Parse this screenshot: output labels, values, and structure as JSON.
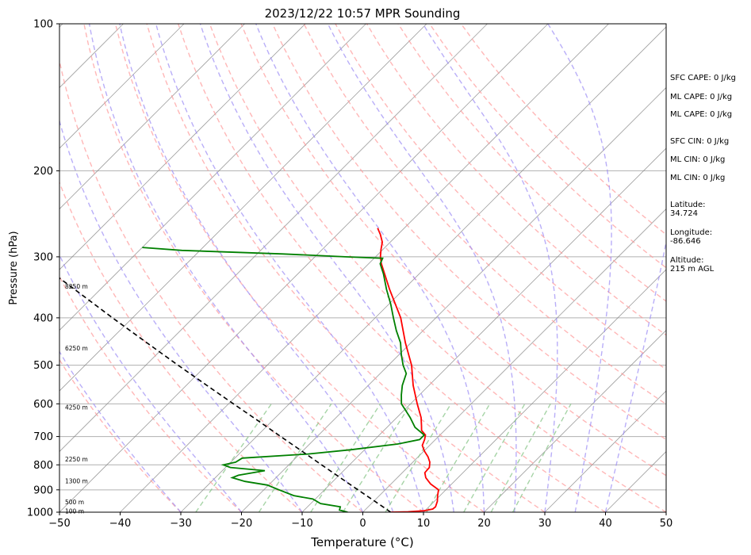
{
  "chart_data": {
    "type": "line",
    "title": "2023/12/22 10:57 MPR Sounding",
    "xlabel": "Temperature (°C)",
    "ylabel": "Pressure (hPa)",
    "xlim": [
      -50,
      50
    ],
    "ylim": [
      1000,
      100
    ],
    "yscale": "log",
    "skew": "skew-T log-P",
    "grid": true,
    "x_ticks": [
      "−50",
      "−40",
      "−30",
      "−20",
      "−10",
      "0",
      "10",
      "20",
      "30",
      "40",
      "50"
    ],
    "y_ticks": [
      {
        "p": 100,
        "label": "100"
      },
      {
        "p": 200,
        "label": "200"
      },
      {
        "p": 300,
        "label": "300"
      },
      {
        "p": 400,
        "label": "400"
      },
      {
        "p": 500,
        "label": "500"
      },
      {
        "p": 600,
        "label": "600"
      },
      {
        "p": 700,
        "label": "700"
      },
      {
        "p": 800,
        "label": "800"
      },
      {
        "p": 900,
        "label": "900"
      },
      {
        "p": 1000,
        "label": "1000"
      }
    ],
    "height_labels": [
      {
        "p": 997,
        "label": "100 m"
      },
      {
        "p": 955,
        "label": "500 m"
      },
      {
        "p": 865,
        "label": "1300 m"
      },
      {
        "p": 780,
        "label": "2250 m"
      },
      {
        "p": 610,
        "label": "4250 m"
      },
      {
        "p": 462,
        "label": "6250 m"
      },
      {
        "p": 345,
        "label": "8250 m"
      }
    ],
    "series": [
      {
        "role": "temperature",
        "color": "#ff0000",
        "points": [
          {
            "p": 1000,
            "t": 4.6
          },
          {
            "p": 998,
            "t": 7.4
          },
          {
            "p": 993,
            "t": 9.9
          },
          {
            "p": 985,
            "t": 11.0
          },
          {
            "p": 975,
            "t": 11.1
          },
          {
            "p": 950,
            "t": 10.5
          },
          {
            "p": 925,
            "t": 9.6
          },
          {
            "p": 900,
            "t": 8.8
          },
          {
            "p": 875,
            "t": 6.5
          },
          {
            "p": 850,
            "t": 4.7
          },
          {
            "p": 830,
            "t": 3.7
          },
          {
            "p": 810,
            "t": 3.6
          },
          {
            "p": 790,
            "t": 2.8
          },
          {
            "p": 770,
            "t": 1.6
          },
          {
            "p": 750,
            "t": 0.1
          },
          {
            "p": 730,
            "t": -1.2
          },
          {
            "p": 710,
            "t": -1.8
          },
          {
            "p": 695,
            "t": -2.4
          },
          {
            "p": 680,
            "t": -3.8
          },
          {
            "p": 665,
            "t": -4.6
          },
          {
            "p": 640,
            "t": -6.0
          },
          {
            "p": 600,
            "t": -8.9
          },
          {
            "p": 550,
            "t": -12.6
          },
          {
            "p": 500,
            "t": -16.2
          },
          {
            "p": 450,
            "t": -20.9
          },
          {
            "p": 400,
            "t": -25.8
          },
          {
            "p": 350,
            "t": -32.3
          },
          {
            "p": 310,
            "t": -37.9
          },
          {
            "p": 300,
            "t": -39.2
          },
          {
            "p": 290,
            "t": -40.3
          },
          {
            "p": 280,
            "t": -41.3
          },
          {
            "p": 270,
            "t": -42.9
          },
          {
            "p": 262,
            "t": -44.4
          }
        ]
      },
      {
        "role": "dewpoint",
        "color": "#008000",
        "points": [
          {
            "p": 1000,
            "t": -2.5
          },
          {
            "p": 990,
            "t": -4.2
          },
          {
            "p": 975,
            "t": -4.6
          },
          {
            "p": 960,
            "t": -8.4
          },
          {
            "p": 940,
            "t": -10.4
          },
          {
            "p": 925,
            "t": -14.1
          },
          {
            "p": 900,
            "t": -17.5
          },
          {
            "p": 880,
            "t": -20.2
          },
          {
            "p": 865,
            "t": -24.5
          },
          {
            "p": 850,
            "t": -27.2
          },
          {
            "p": 840,
            "t": -26.6
          },
          {
            "p": 822,
            "t": -23.0
          },
          {
            "p": 810,
            "t": -29.2
          },
          {
            "p": 800,
            "t": -30.8
          },
          {
            "p": 790,
            "t": -29.2
          },
          {
            "p": 775,
            "t": -28.8
          },
          {
            "p": 760,
            "t": -18.6
          },
          {
            "p": 745,
            "t": -12.2
          },
          {
            "p": 725,
            "t": -5.5
          },
          {
            "p": 710,
            "t": -2.6
          },
          {
            "p": 695,
            "t": -2.6
          },
          {
            "p": 670,
            "t": -5.4
          },
          {
            "p": 640,
            "t": -7.8
          },
          {
            "p": 600,
            "t": -11.5
          },
          {
            "p": 575,
            "t": -13.0
          },
          {
            "p": 550,
            "t": -14.4
          },
          {
            "p": 520,
            "t": -15.7
          },
          {
            "p": 500,
            "t": -17.6
          },
          {
            "p": 475,
            "t": -19.7
          },
          {
            "p": 450,
            "t": -21.7
          },
          {
            "p": 425,
            "t": -24.4
          },
          {
            "p": 400,
            "t": -27.0
          },
          {
            "p": 375,
            "t": -29.7
          },
          {
            "p": 350,
            "t": -32.8
          },
          {
            "p": 325,
            "t": -35.9
          },
          {
            "p": 310,
            "t": -38.1
          },
          {
            "p": 302,
            "t": -38.6
          },
          {
            "p": 300,
            "t": -45.0
          },
          {
            "p": 296,
            "t": -55.7
          },
          {
            "p": 291,
            "t": -73.0
          },
          {
            "p": 287,
            "t": -80.0
          }
        ]
      },
      {
        "role": "parcel",
        "color": "#000000",
        "dashed": true,
        "points": [
          {
            "p": 1000,
            "t": 4.6
          },
          {
            "p": 950,
            "t": 0.2
          },
          {
            "p": 900,
            "t": -4.5
          },
          {
            "p": 850,
            "t": -9.4
          },
          {
            "p": 800,
            "t": -14.6
          },
          {
            "p": 750,
            "t": -20.1
          },
          {
            "p": 700,
            "t": -26.0
          },
          {
            "p": 650,
            "t": -32.3
          },
          {
            "p": 600,
            "t": -39.2
          },
          {
            "p": 550,
            "t": -46.6
          },
          {
            "p": 500,
            "t": -54.7
          },
          {
            "p": 450,
            "t": -63.5
          },
          {
            "p": 400,
            "t": -73.3
          },
          {
            "p": 350,
            "t": -84.2
          },
          {
            "p": 300,
            "t": -96.8
          },
          {
            "p": 270,
            "t": -105.1
          }
        ]
      }
    ],
    "reference_lines": {
      "isotherm_color": "#808080",
      "dry_adiabat_color": "#ff9999",
      "moist_adiabat_color": "#9b8cf5",
      "mixing_ratio_color": "#88c588",
      "dry_adiabat_theta_c": [
        -30,
        -20,
        -10,
        0,
        10,
        20,
        30,
        40,
        50,
        60,
        70,
        80,
        90,
        100,
        110,
        120,
        130
      ],
      "moist_adiabat_start_c": [
        -30,
        -20,
        -10,
        0,
        5,
        10,
        15,
        20,
        25,
        30,
        35,
        40
      ],
      "mixing_ratio_gkg": [
        0.4,
        1,
        2,
        3,
        5,
        8,
        12,
        16,
        20
      ]
    },
    "annotations": [
      "SFC CAPE: 0 J/kg",
      "ML CAPE: 0 J/kg",
      "ML CAPE: 0 J/kg",
      "SFC CIN: 0 J/kg",
      "ML CIN: 0 J/kg",
      "ML CIN: 0 J/kg",
      "Latitude:\n34.724",
      "Longitude:\n-86.646",
      "Altitude:\n215 m AGL"
    ]
  }
}
